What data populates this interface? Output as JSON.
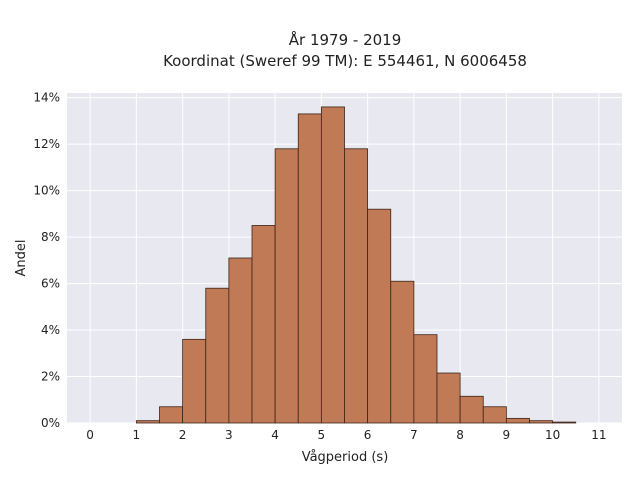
{
  "chart_data": {
    "type": "bar",
    "title": "År 1979 - 2019",
    "subtitle": "Koordinat (Sweref 99 TM): E 554461, N 6006458",
    "xlabel": "Vågperiod (s)",
    "ylabel": "Andel",
    "x_ticks": [
      "0",
      "1",
      "2",
      "3",
      "4",
      "5",
      "6",
      "7",
      "8",
      "9",
      "10",
      "11"
    ],
    "y_ticks": [
      "0%",
      "2%",
      "4%",
      "6%",
      "8%",
      "10%",
      "12%",
      "14%"
    ],
    "y_tick_values": [
      0,
      2,
      4,
      6,
      8,
      10,
      12,
      14
    ],
    "xlim": [
      -0.5,
      11.5
    ],
    "ylim": [
      0,
      14.2
    ],
    "bin_width": 0.5,
    "bin_starts": [
      1.0,
      1.5,
      2.0,
      2.5,
      3.0,
      3.5,
      4.0,
      4.5,
      5.0,
      5.5,
      6.0,
      6.5,
      7.0,
      7.5,
      8.0,
      8.5,
      9.0,
      9.5,
      10.0
    ],
    "values": [
      0.1,
      0.7,
      3.6,
      5.8,
      7.1,
      8.5,
      11.8,
      13.3,
      13.6,
      11.8,
      9.2,
      6.1,
      3.8,
      2.15,
      1.15,
      0.7,
      0.2,
      0.1,
      0.04
    ],
    "bar_color": "#c07a55",
    "bar_edge_color": "#3d2419",
    "background_color": "#e8e8f0",
    "grid": true,
    "grid_color": "#ffffff"
  }
}
